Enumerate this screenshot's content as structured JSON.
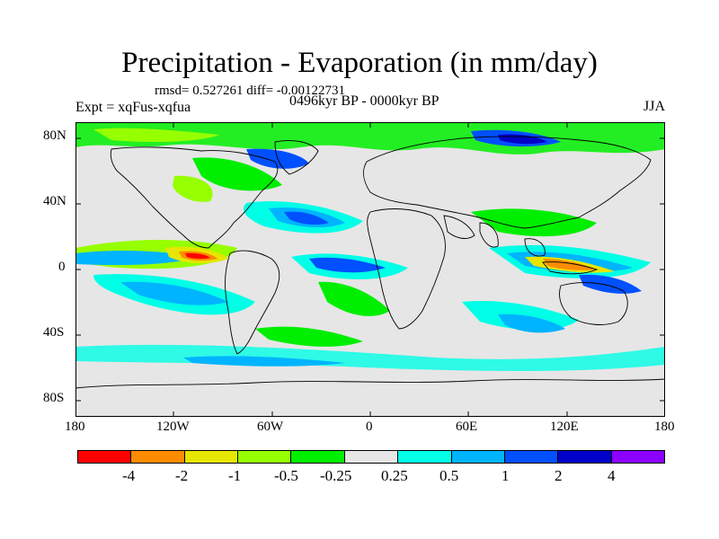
{
  "title": "Precipitation - Evaporation (in mm/day)",
  "stats": "rmsd= 0.527261 diff= -0.00122731",
  "experiment": "Expt = xqFus-xqfua",
  "period": "0496kyr BP - 0000kyr BP",
  "season": "JJA",
  "y_ticks": [
    "80N",
    "40N",
    "0",
    "40S",
    "80S"
  ],
  "x_ticks": [
    "180",
    "120W",
    "60W",
    "0",
    "60E",
    "120E",
    "180"
  ],
  "colorbar": {
    "colors": [
      "#ff0000",
      "#ff8c00",
      "#e6e600",
      "#96ff00",
      "#00ee00",
      "#e6e6e6",
      "#00ffe6",
      "#00b4ff",
      "#0050ff",
      "#0000c8",
      "#8c00ff"
    ],
    "labels": [
      "-4",
      "-2",
      "-1",
      "-0.5",
      "-0.25",
      "0.25",
      "0.5",
      "1",
      "2",
      "4"
    ]
  },
  "map": {
    "background_color": "#e6e6e6",
    "coastline_color": "#000000"
  }
}
